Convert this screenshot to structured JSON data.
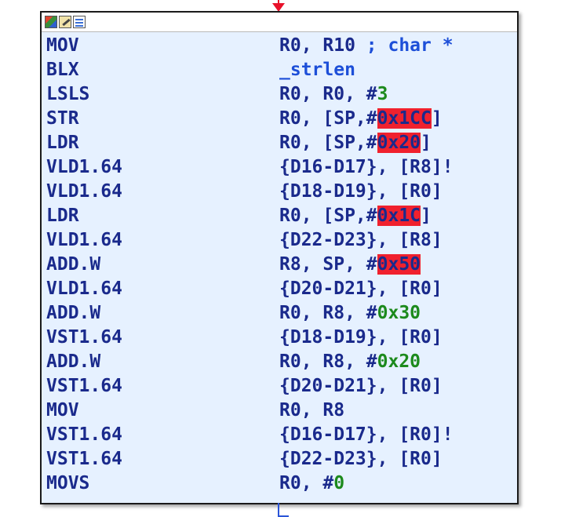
{
  "node": {
    "toolbar_icons": [
      "graph-color-icon",
      "edit-node-icon",
      "node-list-icon"
    ],
    "colors": {
      "node_background": "#e6f1ff",
      "mnemonic": "#1a2a8c",
      "number": "#1c8a1c",
      "symbol": "#1d4fd8",
      "highlight": "#f0212e",
      "incoming_edge": "#e8112a",
      "outgoing_edge": "#2b55d8"
    },
    "lines": [
      {
        "mnemonic": "MOV",
        "a": "R0, R10 ",
        "comment": "; char *"
      },
      {
        "mnemonic": "BLX",
        "sym": "_strlen"
      },
      {
        "mnemonic": "LSLS",
        "a": "R0, R0, ",
        "hash": "#",
        "num": "3"
      },
      {
        "mnemonic": "STR",
        "a": "R0, [SP,",
        "hash": "#",
        "hl": "0x1CC",
        "b": "]"
      },
      {
        "mnemonic": "LDR",
        "a": "R0, [SP,",
        "hash": "#",
        "hl": "0x20",
        "b": "]"
      },
      {
        "mnemonic": "VLD1.64",
        "a": "{D16-D17}, [R8]!"
      },
      {
        "mnemonic": "VLD1.64",
        "a": "{D18-D19}, [R0]"
      },
      {
        "mnemonic": "LDR",
        "a": "R0, [SP,",
        "hash": "#",
        "hl": "0x1C",
        "b": "]"
      },
      {
        "mnemonic": "VLD1.64",
        "a": "{D22-D23}, [R8]"
      },
      {
        "mnemonic": "ADD.W",
        "a": "R8, SP, ",
        "hash": "#",
        "hl": "0x50"
      },
      {
        "mnemonic": "VLD1.64",
        "a": "{D20-D21}, [R0]"
      },
      {
        "mnemonic": "ADD.W",
        "a": "R0, R8, ",
        "hash": "#",
        "num": "0x30"
      },
      {
        "mnemonic": "VST1.64",
        "a": "{D18-D19}, [R0]"
      },
      {
        "mnemonic": "ADD.W",
        "a": "R0, R8, ",
        "hash": "#",
        "num": "0x20"
      },
      {
        "mnemonic": "VST1.64",
        "a": "{D20-D21}, [R0]"
      },
      {
        "mnemonic": "MOV",
        "a": "R0, R8"
      },
      {
        "mnemonic": "VST1.64",
        "a": "{D16-D17}, [R0]!"
      },
      {
        "mnemonic": "VST1.64",
        "a": "{D22-D23}, [R0]"
      },
      {
        "mnemonic": "MOVS",
        "a": "R0, ",
        "hash": "#",
        "num": "0"
      }
    ]
  }
}
